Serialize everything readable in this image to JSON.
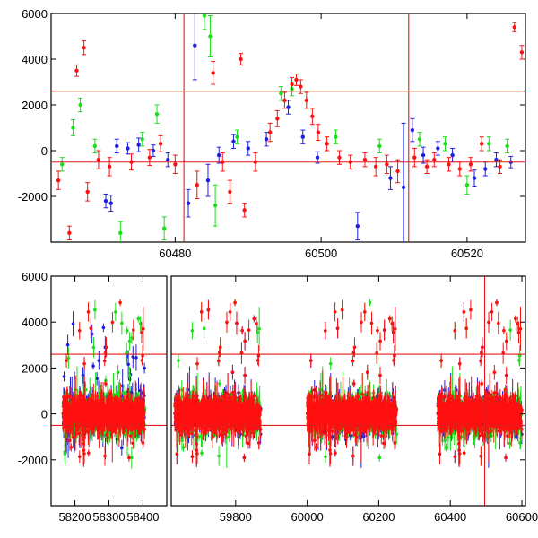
{
  "chart_data": [
    {
      "type": "scatter",
      "panel": "top",
      "title": "",
      "xlabel": "",
      "ylabel": "",
      "xlim": [
        60463,
        60528
      ],
      "ylim": [
        -4000,
        6000
      ],
      "xticks": [
        60480,
        60500,
        60520
      ],
      "xtick_labels": [
        "60480",
        "60500",
        "60520"
      ],
      "yticks": [
        -2000,
        0,
        2000,
        4000,
        6000
      ],
      "ytick_labels": [
        "-2000",
        "0",
        "2000",
        "4000",
        "6000"
      ],
      "grid": false,
      "legend": "none",
      "hlines": [
        2600,
        -500
      ],
      "vlines": [
        60481.2,
        60512
      ],
      "series": [
        {
          "color": "#1f1fe0",
          "points": [
            {
              "x": 60470.5,
              "y": -2200,
              "err": 300
            },
            {
              "x": 60471.2,
              "y": -2300,
              "err": 350
            },
            {
              "x": 60472.0,
              "y": 200,
              "err": 300
            },
            {
              "x": 60473.5,
              "y": 100,
              "err": 250
            },
            {
              "x": 60475.0,
              "y": 250,
              "err": 300
            },
            {
              "x": 60477.0,
              "y": 0,
              "err": 250
            },
            {
              "x": 60479.0,
              "y": -400,
              "err": 300
            },
            {
              "x": 60481.8,
              "y": -2300,
              "err": 600
            },
            {
              "x": 60482.7,
              "y": 4600,
              "err": 1500
            },
            {
              "x": 60484.5,
              "y": -1300,
              "err": 700
            },
            {
              "x": 60486.0,
              "y": -200,
              "err": 350
            },
            {
              "x": 60488.0,
              "y": 400,
              "err": 300
            },
            {
              "x": 60490.0,
              "y": 100,
              "err": 300
            },
            {
              "x": 60492.5,
              "y": 500,
              "err": 300
            },
            {
              "x": 60495.5,
              "y": 1900,
              "err": 300
            },
            {
              "x": 60497.5,
              "y": 600,
              "err": 300
            },
            {
              "x": 60499.5,
              "y": -300,
              "err": 250
            },
            {
              "x": 60505.0,
              "y": -3300,
              "err": 600
            },
            {
              "x": 60509.5,
              "y": -1200,
              "err": 500
            },
            {
              "x": 60511.3,
              "y": -1600,
              "err": 2800
            },
            {
              "x": 60512.5,
              "y": 900,
              "err": 500
            },
            {
              "x": 60514.0,
              "y": -200,
              "err": 350
            },
            {
              "x": 60516.0,
              "y": 100,
              "err": 300
            },
            {
              "x": 60518.0,
              "y": -200,
              "err": 300
            },
            {
              "x": 60521.0,
              "y": -1200,
              "err": 350
            },
            {
              "x": 60522.5,
              "y": -800,
              "err": 300
            },
            {
              "x": 60524.0,
              "y": -400,
              "err": 300
            },
            {
              "x": 60526.0,
              "y": -500,
              "err": 250
            }
          ]
        },
        {
          "color": "#18e018",
          "points": [
            {
              "x": 60464.5,
              "y": -600,
              "err": 300
            },
            {
              "x": 60466.0,
              "y": 1000,
              "err": 350
            },
            {
              "x": 60467.0,
              "y": 2000,
              "err": 300
            },
            {
              "x": 60469.0,
              "y": 200,
              "err": 300
            },
            {
              "x": 60472.5,
              "y": -3600,
              "err": 500
            },
            {
              "x": 60475.5,
              "y": 500,
              "err": 300
            },
            {
              "x": 60477.5,
              "y": 1600,
              "err": 400
            },
            {
              "x": 60478.5,
              "y": -3400,
              "err": 500
            },
            {
              "x": 60484.0,
              "y": 5900,
              "err": 600
            },
            {
              "x": 60484.8,
              "y": 5000,
              "err": 900
            },
            {
              "x": 60485.5,
              "y": -2400,
              "err": 900
            },
            {
              "x": 60488.5,
              "y": 600,
              "err": 300
            },
            {
              "x": 60494.5,
              "y": 2500,
              "err": 300
            },
            {
              "x": 60496.0,
              "y": 2700,
              "err": 300
            },
            {
              "x": 60502.0,
              "y": 600,
              "err": 300
            },
            {
              "x": 60508.0,
              "y": 200,
              "err": 300
            },
            {
              "x": 60513.5,
              "y": 500,
              "err": 300
            },
            {
              "x": 60517.0,
              "y": 300,
              "err": 300
            },
            {
              "x": 60520.0,
              "y": -1500,
              "err": 400
            },
            {
              "x": 60523.0,
              "y": 300,
              "err": 300
            },
            {
              "x": 60525.5,
              "y": 200,
              "err": 300
            }
          ]
        },
        {
          "color": "#ff1010",
          "points": [
            {
              "x": 60464.0,
              "y": -1300,
              "err": 400
            },
            {
              "x": 60465.5,
              "y": -3600,
              "err": 300
            },
            {
              "x": 60466.5,
              "y": 3500,
              "err": 250
            },
            {
              "x": 60467.5,
              "y": 4500,
              "err": 300
            },
            {
              "x": 60468.0,
              "y": -1800,
              "err": 400
            },
            {
              "x": 60469.5,
              "y": -400,
              "err": 400
            },
            {
              "x": 60471.0,
              "y": -700,
              "err": 400
            },
            {
              "x": 60474.0,
              "y": -500,
              "err": 350
            },
            {
              "x": 60476.5,
              "y": -300,
              "err": 350
            },
            {
              "x": 60478.0,
              "y": 300,
              "err": 350
            },
            {
              "x": 60480.0,
              "y": -600,
              "err": 400
            },
            {
              "x": 60483.0,
              "y": -1500,
              "err": 600
            },
            {
              "x": 60485.2,
              "y": 3400,
              "err": 500
            },
            {
              "x": 60486.5,
              "y": -500,
              "err": 400
            },
            {
              "x": 60487.5,
              "y": -1800,
              "err": 500
            },
            {
              "x": 60489.0,
              "y": 4000,
              "err": 250
            },
            {
              "x": 60489.5,
              "y": -2600,
              "err": 300
            },
            {
              "x": 60491.0,
              "y": -500,
              "err": 400
            },
            {
              "x": 60493.0,
              "y": 800,
              "err": 400
            },
            {
              "x": 60494.0,
              "y": 1400,
              "err": 350
            },
            {
              "x": 60495.0,
              "y": 2200,
              "err": 350
            },
            {
              "x": 60496.0,
              "y": 2900,
              "err": 300
            },
            {
              "x": 60496.6,
              "y": 3100,
              "err": 250
            },
            {
              "x": 60497.2,
              "y": 2800,
              "err": 300
            },
            {
              "x": 60498.0,
              "y": 2200,
              "err": 350
            },
            {
              "x": 60498.8,
              "y": 1500,
              "err": 350
            },
            {
              "x": 60499.6,
              "y": 800,
              "err": 350
            },
            {
              "x": 60500.8,
              "y": 300,
              "err": 300
            },
            {
              "x": 60502.5,
              "y": -300,
              "err": 300
            },
            {
              "x": 60504.0,
              "y": -500,
              "err": 300
            },
            {
              "x": 60506.0,
              "y": -400,
              "err": 300
            },
            {
              "x": 60507.5,
              "y": -700,
              "err": 400
            },
            {
              "x": 60509.0,
              "y": -600,
              "err": 400
            },
            {
              "x": 60510.5,
              "y": -900,
              "err": 500
            },
            {
              "x": 60512.8,
              "y": -300,
              "err": 400
            },
            {
              "x": 60514.5,
              "y": -700,
              "err": 300
            },
            {
              "x": 60515.5,
              "y": -400,
              "err": 300
            },
            {
              "x": 60517.5,
              "y": -600,
              "err": 300
            },
            {
              "x": 60519.0,
              "y": -800,
              "err": 300
            },
            {
              "x": 60520.5,
              "y": -600,
              "err": 300
            },
            {
              "x": 60522.0,
              "y": 300,
              "err": 300
            },
            {
              "x": 60524.5,
              "y": -700,
              "err": 300
            },
            {
              "x": 60526.5,
              "y": 5400,
              "err": 200
            },
            {
              "x": 60527.5,
              "y": 4300,
              "err": 300
            }
          ]
        }
      ]
    },
    {
      "type": "scatter",
      "panel": "bottom",
      "title": "",
      "xlabel": "",
      "ylabel": "",
      "ylim": [
        -4000,
        6000
      ],
      "yticks": [
        -2000,
        0,
        2000,
        4000,
        6000
      ],
      "ytick_labels": [
        "-2000",
        "0",
        "2000",
        "4000",
        "6000"
      ],
      "grid": false,
      "legend": "none",
      "hlines": [
        2600,
        -500
      ],
      "vlines": [
        60496
      ],
      "segments": [
        {
          "xlim": [
            58130,
            58470
          ],
          "xticks": [
            58200,
            58300,
            58400
          ],
          "xtick_labels": [
            "58200",
            "58300",
            "58400"
          ],
          "clusters": [
            [
              58165,
              58405
            ]
          ]
        },
        {
          "xlim": [
            59620,
            60610
          ],
          "xticks": [
            59800,
            60000,
            60200,
            60400,
            60600
          ],
          "xtick_labels": [
            "59800",
            "60000",
            "60200",
            "60400",
            "60600"
          ],
          "clusters": [
            [
              59630,
              59870
            ],
            [
              60000,
              60250
            ],
            [
              60365,
              60600
            ]
          ]
        }
      ],
      "series": [
        {
          "color": "#1f1fe0",
          "scatter": "dense, centered near 0, spread about -3000 to 4800"
        },
        {
          "color": "#18e018",
          "scatter": "dense, centered near 0, spread about -3800 to 6000"
        },
        {
          "color": "#ff1010",
          "scatter": "dense, centered near 0, spread about -2500 to 5400"
        }
      ]
    }
  ]
}
